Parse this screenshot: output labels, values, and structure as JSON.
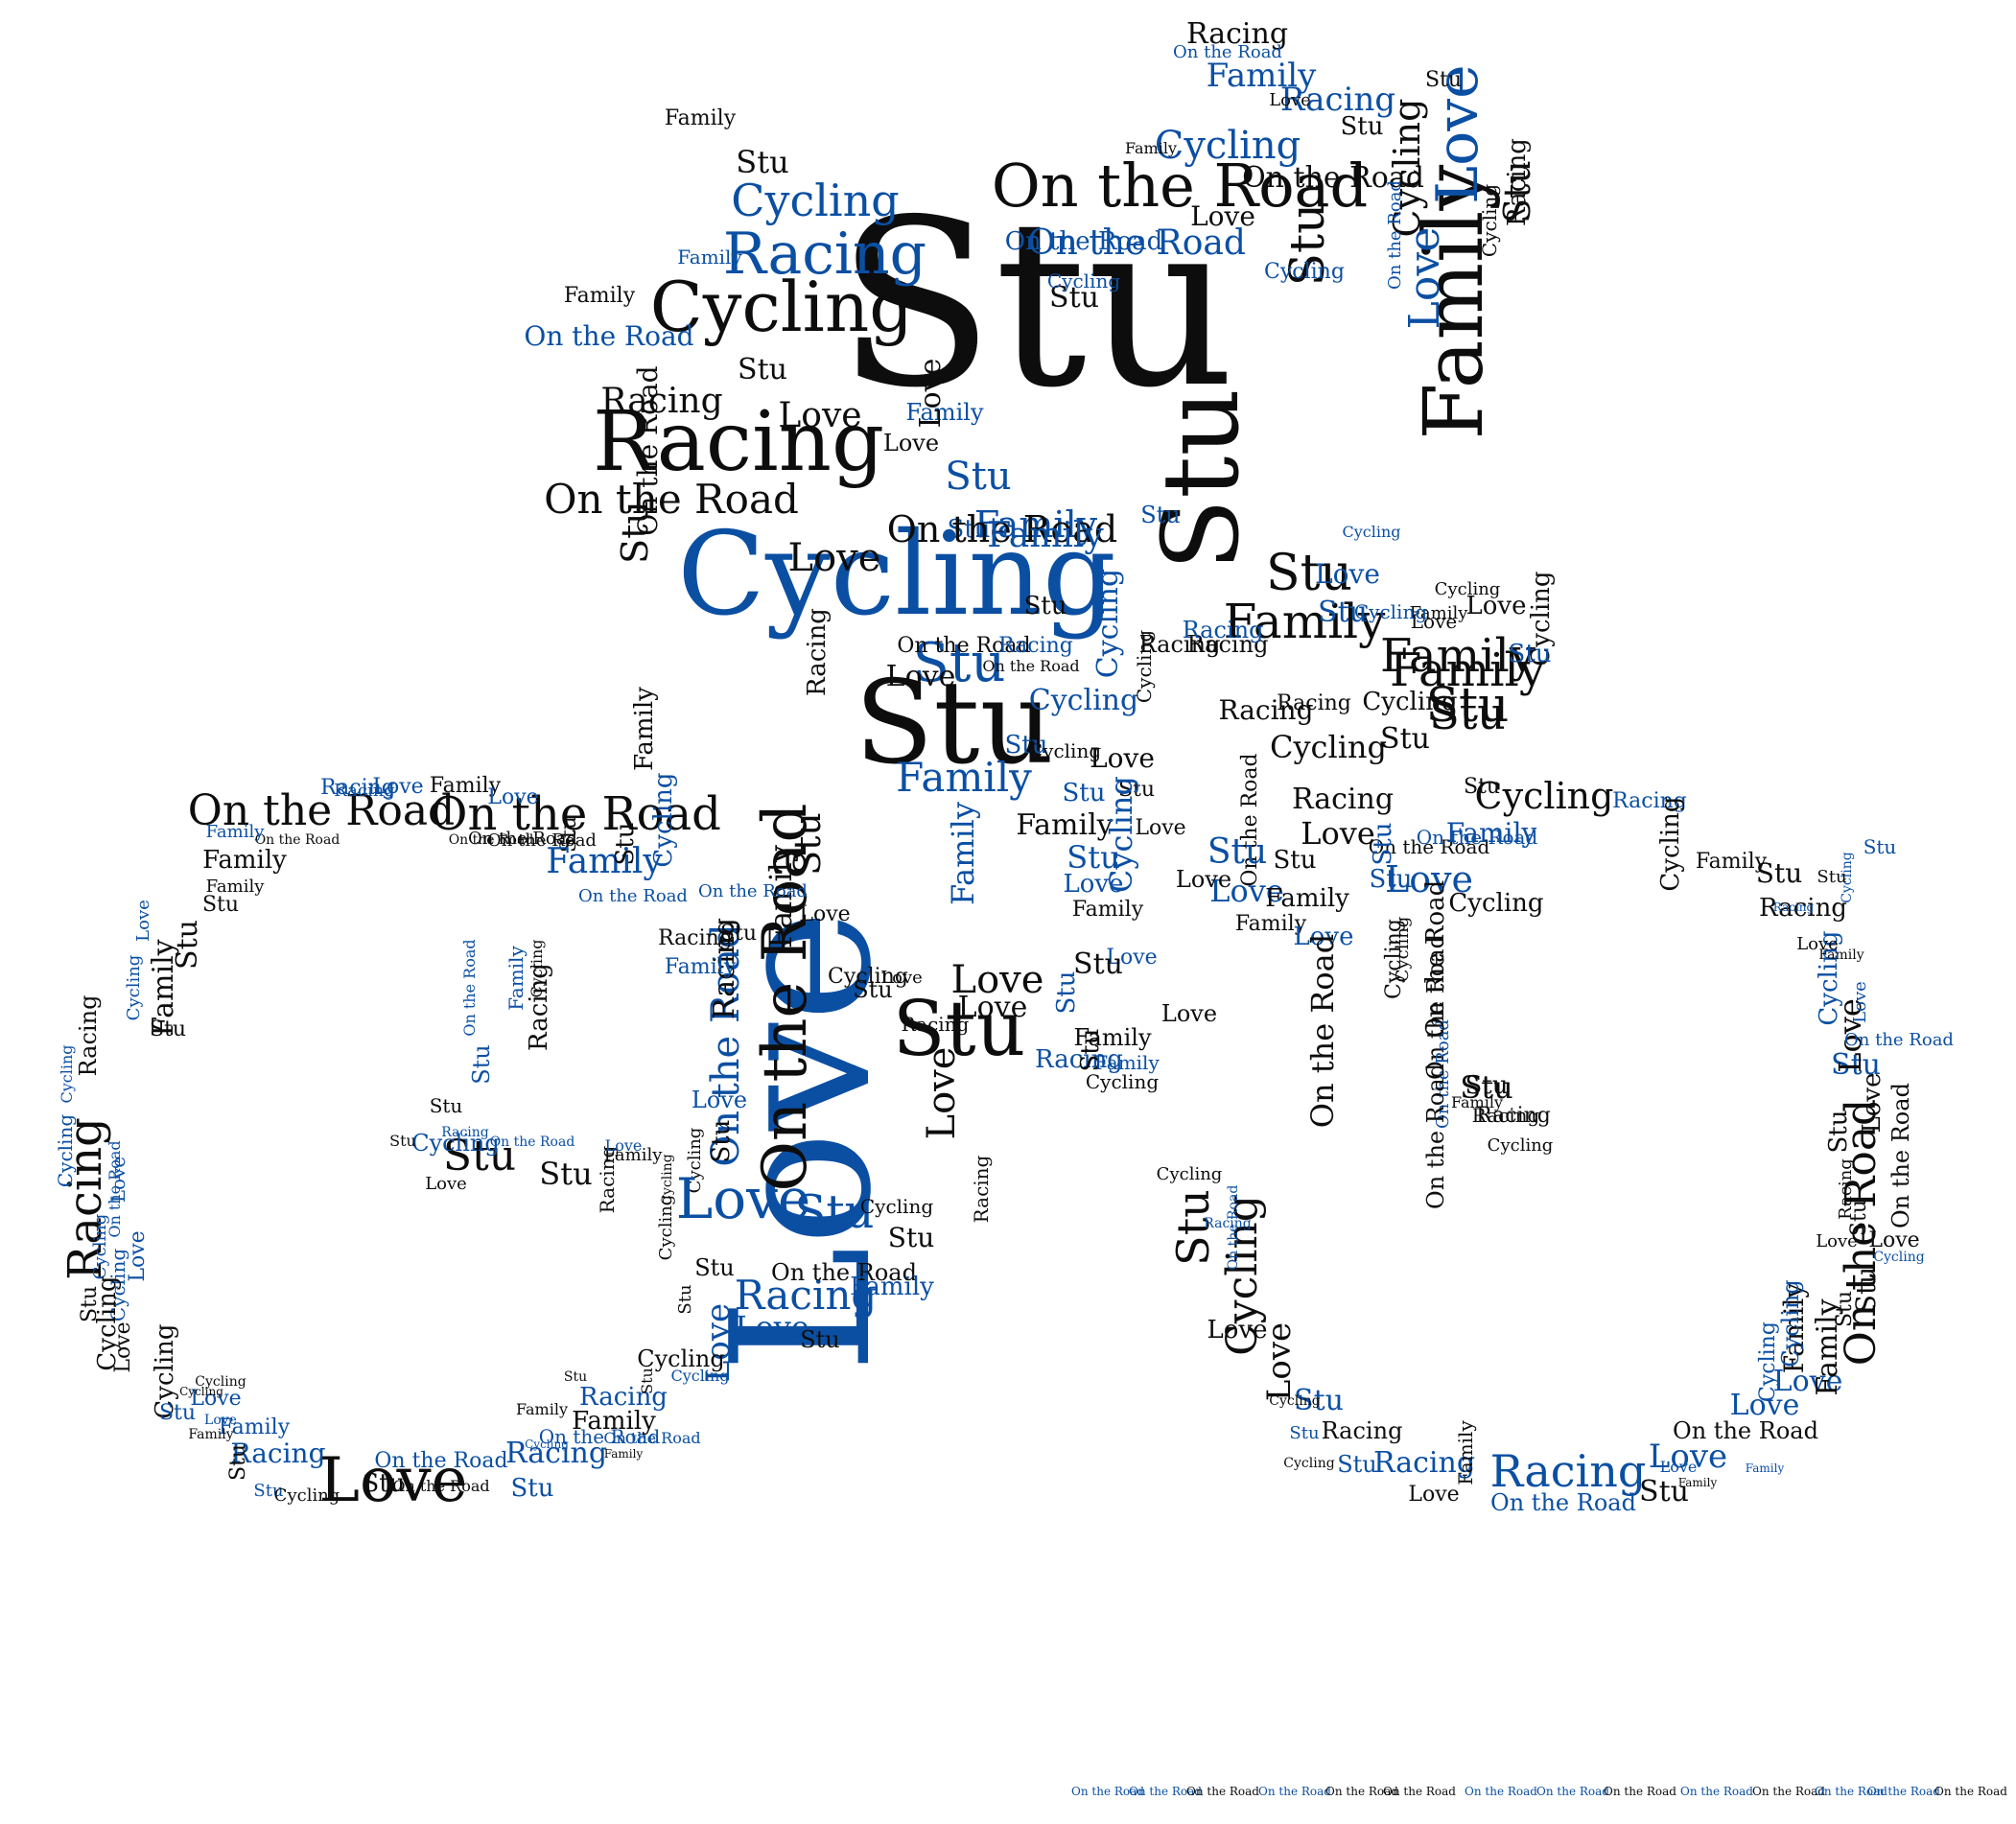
{
  "image": {
    "kind": "word-cloud",
    "shape": "cyclist riding a bicycle",
    "words": [
      "Stu",
      "Love",
      "Cycling",
      "Racing",
      "Family",
      "On the Road"
    ],
    "colors": {
      "black": "#0d0d0d",
      "blue": "#0b4fa3",
      "background": "#ffffff"
    }
  }
}
